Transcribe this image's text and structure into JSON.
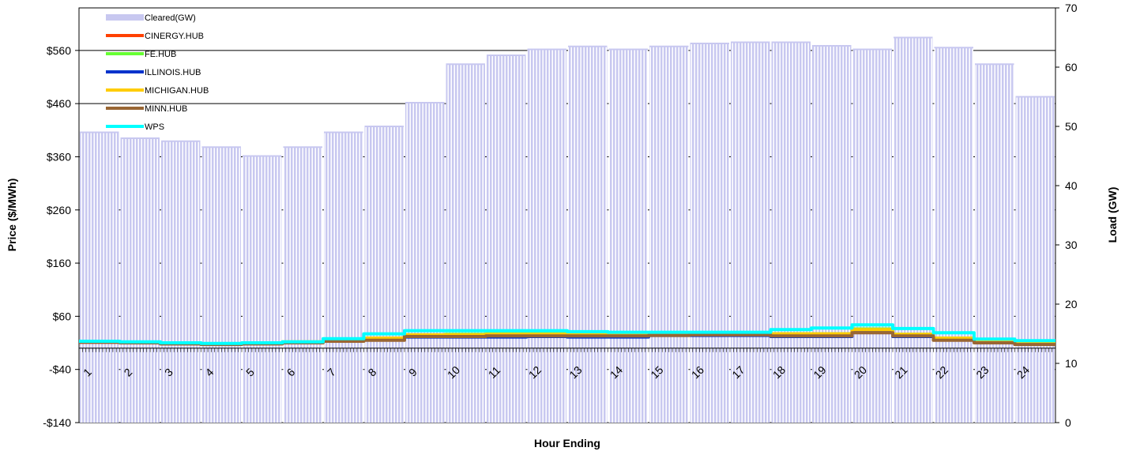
{
  "chart_data": {
    "type": "bar+line",
    "xlabel": "Hour Ending",
    "ylabel_left": "Price ($/MWh)",
    "ylabel_right": "Load (GW)",
    "left_axis": {
      "min": -140,
      "max": 640,
      "ticks": [
        -140,
        -40,
        60,
        160,
        260,
        360,
        460,
        560
      ],
      "tick_labels": [
        "-$140",
        "-$40",
        "$60",
        "$160",
        "$260",
        "$360",
        "$460",
        "$560"
      ]
    },
    "right_axis": {
      "min": 0,
      "max": 70,
      "ticks": [
        0,
        10,
        20,
        30,
        40,
        50,
        60,
        70
      ],
      "tick_labels": [
        "0",
        "10",
        "20",
        "30",
        "40",
        "50",
        "60",
        "70"
      ]
    },
    "categories": [
      "1",
      "2",
      "3",
      "4",
      "5",
      "6",
      "7",
      "8",
      "9",
      "10",
      "11",
      "12",
      "13",
      "14",
      "15",
      "16",
      "17",
      "18",
      "19",
      "20",
      "21",
      "22",
      "23",
      "24"
    ],
    "load_series": {
      "name": "Cleared(GW)",
      "color": "#c8c8f0",
      "values": [
        49,
        48,
        47.5,
        46.5,
        45,
        46.5,
        49,
        50,
        54,
        60.5,
        62,
        63,
        63.5,
        63,
        63.5,
        64,
        64.2,
        64.2,
        63.6,
        63,
        65,
        63.3,
        60.5,
        55
      ]
    },
    "price_series": [
      {
        "name": "CINERGY.HUB",
        "color": "#ff4000",
        "values": [
          12,
          11,
          9,
          8,
          9,
          11,
          16,
          18,
          24,
          24,
          25,
          25,
          24,
          24,
          26,
          26,
          26,
          25,
          24,
          32,
          24,
          18,
          12,
          9
        ]
      },
      {
        "name": "FE.HUB",
        "color": "#66ff33",
        "values": [
          12,
          11,
          9,
          8,
          9,
          11,
          16,
          19,
          25,
          26,
          27,
          27,
          26,
          26,
          27,
          27,
          27,
          27,
          27,
          36,
          26,
          19,
          13,
          10
        ]
      },
      {
        "name": "ILLINOIS.HUB",
        "color": "#0033cc",
        "values": [
          12,
          11,
          9,
          8,
          9,
          11,
          15,
          17,
          21,
          21,
          21,
          22,
          21,
          21,
          24,
          24,
          24,
          22,
          22,
          30,
          22,
          17,
          12,
          9
        ]
      },
      {
        "name": "MICHIGAN.HUB",
        "color": "#ffcc00",
        "values": [
          12,
          11,
          9,
          8,
          9,
          12,
          16,
          19,
          25,
          25,
          26,
          26,
          25,
          25,
          27,
          27,
          27,
          27,
          27,
          35,
          26,
          19,
          13,
          10
        ]
      },
      {
        "name": "MINN.HUB",
        "color": "#996633",
        "values": [
          11,
          10,
          8,
          7,
          8,
          10,
          13,
          15,
          22,
          22,
          23,
          23,
          23,
          23,
          24,
          25,
          25,
          23,
          23,
          29,
          23,
          15,
          10,
          7
        ]
      },
      {
        "name": "WPS",
        "color": "#00ffff",
        "values": [
          13,
          12,
          10,
          9,
          10,
          12,
          18,
          27,
          33,
          33,
          33,
          33,
          31,
          30,
          30,
          30,
          30,
          35,
          38,
          44,
          37,
          29,
          17,
          14
        ]
      }
    ],
    "grid": "horizontal",
    "legend_position": "top-left"
  }
}
